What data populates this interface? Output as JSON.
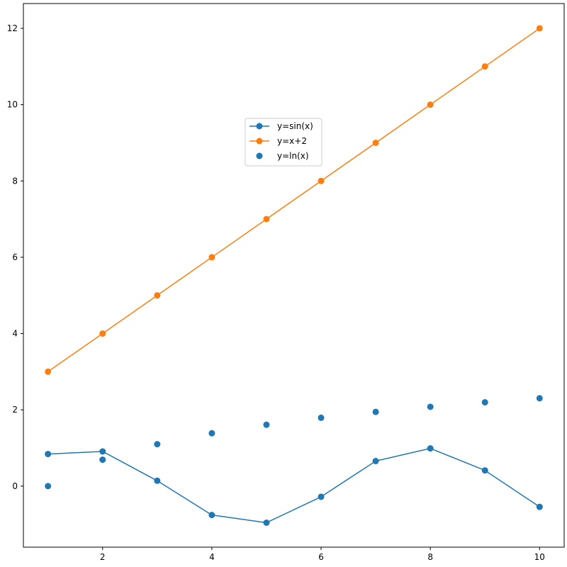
{
  "chart_data": {
    "type": "line",
    "title": "",
    "xlabel": "",
    "ylabel": "",
    "xlim": [
      0.55,
      10.45
    ],
    "ylim": [
      -1.6,
      12.65
    ],
    "xticks": [
      2,
      4,
      6,
      8,
      10
    ],
    "yticks": [
      0,
      2,
      4,
      6,
      8,
      10,
      12
    ],
    "grid": false,
    "legend_position": "upper-center",
    "series": [
      {
        "name": "y=sin(x)",
        "kind": "line-marker",
        "color": "#1f77b4",
        "x": [
          1,
          2,
          3,
          4,
          5,
          6,
          7,
          8,
          9,
          10
        ],
        "y": [
          0.841,
          0.909,
          0.141,
          -0.757,
          -0.959,
          -0.279,
          0.657,
          0.989,
          0.412,
          -0.544
        ]
      },
      {
        "name": "y=x+2",
        "kind": "line-marker",
        "color": "#ff7f0e",
        "x": [
          1,
          2,
          3,
          4,
          5,
          6,
          7,
          8,
          9,
          10
        ],
        "y": [
          3,
          4,
          5,
          6,
          7,
          8,
          9,
          10,
          11,
          12
        ]
      },
      {
        "name": "y=ln(x)",
        "kind": "scatter",
        "color": "#1f77b4",
        "x": [
          1,
          2,
          3,
          4,
          5,
          6,
          7,
          8,
          9,
          10
        ],
        "y": [
          0,
          0.693,
          1.099,
          1.386,
          1.609,
          1.792,
          1.946,
          2.079,
          2.197,
          2.303
        ]
      }
    ]
  }
}
